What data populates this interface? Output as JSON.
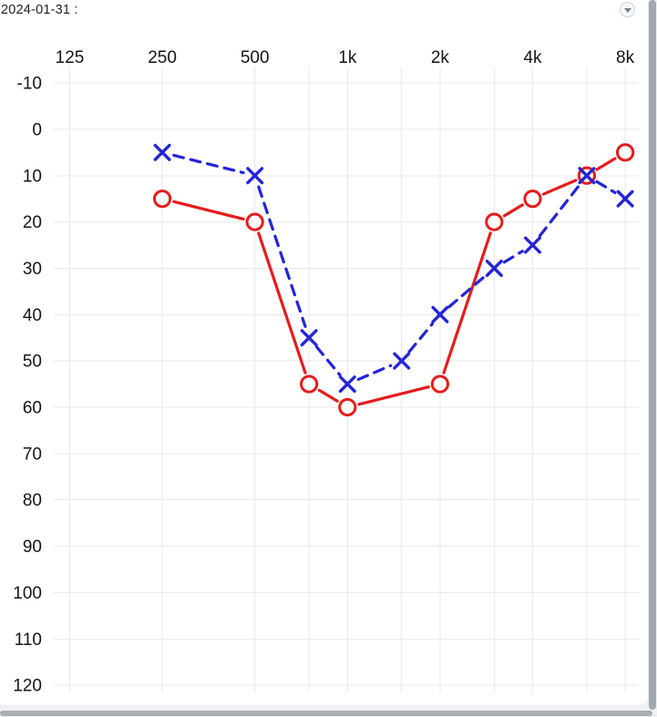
{
  "header": {
    "date_label": "2024-01-31 :"
  },
  "controls": {
    "collapse_icon": "chevron-down-circle"
  },
  "chart_data": {
    "type": "line",
    "subtype": "audiogram",
    "title": "",
    "legend": "none",
    "grid": true,
    "x_axis": {
      "position": "top",
      "scale": "log-octave",
      "tick_labels": [
        "125",
        "250",
        "500",
        "1k",
        "2k",
        "4k",
        "8k"
      ],
      "tick_freqs_hz": [
        125,
        250,
        500,
        1000,
        2000,
        4000,
        8000
      ],
      "gridline_freqs_hz": [
        125,
        250,
        500,
        750,
        1000,
        1500,
        2000,
        3000,
        4000,
        6000,
        8000
      ]
    },
    "y_axis": {
      "position": "left",
      "unit": "dB",
      "inverted": true,
      "min": -10,
      "max": 120,
      "ticks": [
        -10,
        0,
        10,
        20,
        30,
        40,
        50,
        60,
        70,
        80,
        90,
        100,
        110,
        120
      ]
    },
    "series": [
      {
        "name": "right-ear-air-conduction",
        "marker": "circle",
        "line_style": "solid",
        "color": "#e51c1c",
        "points": [
          [
            250,
            15
          ],
          [
            500,
            20
          ],
          [
            750,
            55
          ],
          [
            1000,
            60
          ],
          [
            2000,
            55
          ],
          [
            3000,
            20
          ],
          [
            4000,
            15
          ],
          [
            6000,
            10
          ],
          [
            8000,
            5
          ]
        ]
      },
      {
        "name": "left-ear-air-conduction",
        "marker": "x",
        "line_style": "dashed",
        "color": "#2424d8",
        "points": [
          [
            250,
            5
          ],
          [
            500,
            10
          ],
          [
            750,
            45
          ],
          [
            1000,
            55
          ],
          [
            1500,
            50
          ],
          [
            2000,
            40
          ],
          [
            3000,
            30
          ],
          [
            4000,
            25
          ],
          [
            6000,
            10
          ],
          [
            8000,
            15
          ]
        ]
      }
    ]
  }
}
